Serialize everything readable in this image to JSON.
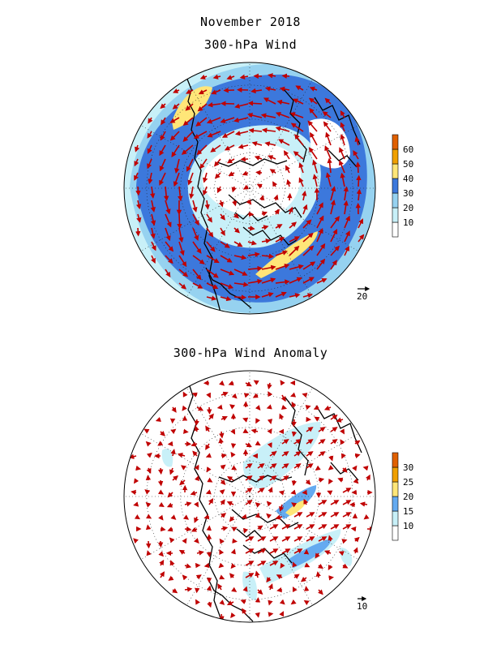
{
  "header": {
    "title": "November 2018",
    "panel1_title": "300-hPa Wind",
    "panel2_title": "300-hPa Wind Anomaly"
  },
  "panel1": {
    "colorbar": {
      "labels": [
        "10",
        "20",
        "30",
        "40",
        "50",
        "60"
      ],
      "colors": [
        "#ffffff",
        "#c8f0f8",
        "#96d2f0",
        "#3c78dc",
        "#ffe678",
        "#f0a000",
        "#e06000"
      ]
    },
    "reference_vector_label": "20"
  },
  "panel2": {
    "colorbar": {
      "labels": [
        "10",
        "15",
        "20",
        "25",
        "30"
      ],
      "colors": [
        "#ffffff",
        "#c8f0f8",
        "#64aaf0",
        "#ffe678",
        "#f0a000",
        "#e06000"
      ]
    },
    "reference_vector_label": "10"
  },
  "styles": {
    "arrow_color": "#c00000",
    "coast_color": "#000000"
  }
}
